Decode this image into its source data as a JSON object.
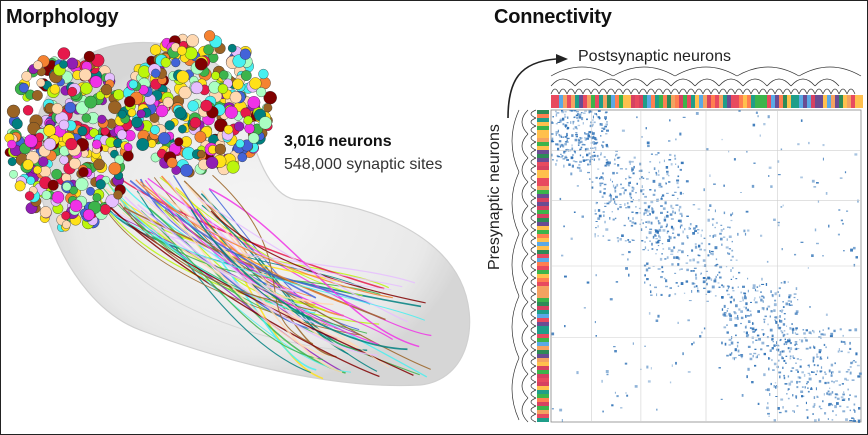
{
  "panels": {
    "morphology": {
      "title": "Morphology",
      "stat_primary": "3,016 neurons",
      "stat_secondary": "548,000 synaptic sites"
    },
    "connectivity": {
      "title": "Connectivity",
      "postsynaptic_label": "Postsynaptic neurons",
      "presynaptic_label": "Presynaptic neurons"
    }
  },
  "colors": {
    "matrix_blue": "#2b6fb5",
    "soma_palette": [
      "#e6194b",
      "#3cb44b",
      "#ffe119",
      "#4363d8",
      "#f58231",
      "#911eb4",
      "#46f0f0",
      "#f032e6",
      "#bcf60c",
      "#008080",
      "#e6beff",
      "#9a6324",
      "#ffd8b1",
      "#800000",
      "#aaffc3"
    ],
    "group_strip": [
      "#2e8b57",
      "#e84a5f",
      "#ffc04d",
      "#5aa9e6",
      "#3cb44b",
      "#d64161",
      "#f4a261",
      "#6a4c93",
      "#ff7f50",
      "#1f9e89"
    ]
  }
}
